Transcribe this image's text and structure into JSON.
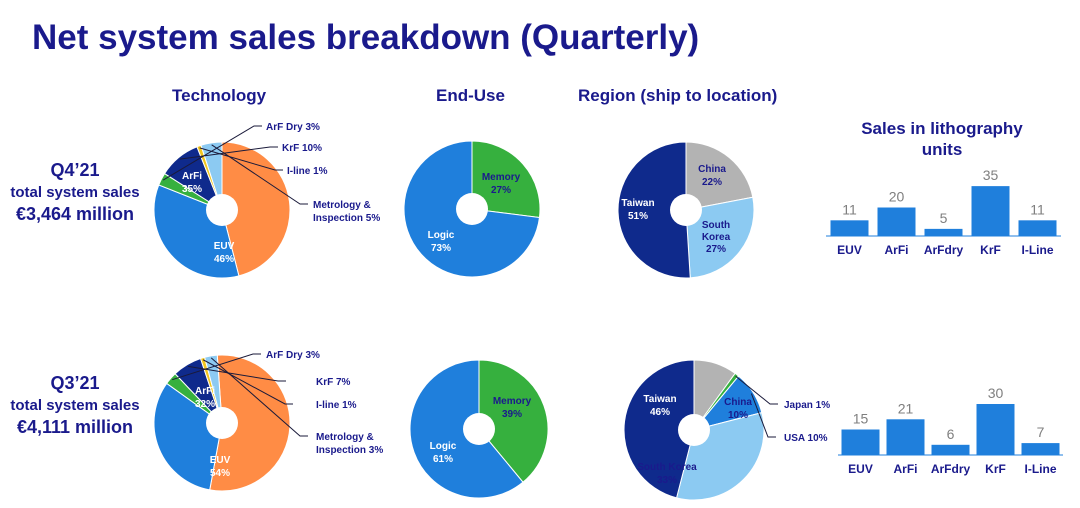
{
  "title": "Net system sales breakdown (Quarterly)",
  "columns": {
    "technology": "Technology",
    "end_use": "End-Use",
    "region": "Region (ship to location)",
    "units": "Sales in lithography units"
  },
  "periods": [
    {
      "quarter": "Q4’21",
      "label": "total system sales",
      "value": "€3,464 million"
    },
    {
      "quarter": "Q3’21",
      "label": "total system sales",
      "value": "€4,111 million"
    }
  ],
  "colors": {
    "title": "#1a1a8c",
    "euv": "#ff8c45",
    "arfi": "#1f7fdc",
    "arf_dry": "#36b03e",
    "krf": "#0f2a8c",
    "iline": "#f2c51e",
    "metrology": "#8ccaf2",
    "logic": "#1f7fdc",
    "memory": "#36b03e",
    "taiwan": "#0f2a8c",
    "china": "#b3b3b3",
    "south_korea": "#8ccaf2",
    "japan": "#36b03e",
    "usa": "#1f7fdc",
    "units_bar": "#1f7fdc"
  },
  "chart_data": [
    {
      "type": "pie",
      "title": "Technology",
      "period": "Q4’21",
      "slices": [
        {
          "label": "EUV",
          "value": 46,
          "value_label": "46%",
          "color": "#ff8c45"
        },
        {
          "label": "ArFi",
          "value": 35,
          "value_label": "35%",
          "color": "#1f7fdc"
        },
        {
          "label": "ArF Dry",
          "value": 3,
          "value_label": "3%",
          "color": "#36b03e"
        },
        {
          "label": "KrF",
          "value": 10,
          "value_label": "10%",
          "color": "#0f2a8c"
        },
        {
          "label": "I-line",
          "value": 1,
          "value_label": "1%",
          "color": "#f2c51e"
        },
        {
          "label": "Metrology & Inspection",
          "value": 5,
          "value_label": "5%",
          "color": "#8ccaf2"
        }
      ]
    },
    {
      "type": "pie",
      "title": "End-Use",
      "period": "Q4’21",
      "slices": [
        {
          "label": "Memory",
          "value": 27,
          "value_label": "27%",
          "color": "#36b03e"
        },
        {
          "label": "Logic",
          "value": 73,
          "value_label": "73%",
          "color": "#1f7fdc"
        }
      ]
    },
    {
      "type": "pie",
      "title": "Region (ship to location)",
      "period": "Q4’21",
      "slices": [
        {
          "label": "China",
          "value": 22,
          "value_label": "22%",
          "color": "#b3b3b3"
        },
        {
          "label": "South Korea",
          "value": 27,
          "value_label": "27%",
          "color": "#8ccaf2"
        },
        {
          "label": "Taiwan",
          "value": 51,
          "value_label": "51%",
          "color": "#0f2a8c"
        }
      ]
    },
    {
      "type": "bar",
      "title": "Sales in lithography units",
      "period": "Q4’21",
      "categories": [
        "EUV",
        "ArFi",
        "ArFdry",
        "KrF",
        "I-Line"
      ],
      "values": [
        11,
        20,
        5,
        35,
        11
      ],
      "value_labels": [
        "11",
        "20",
        "5",
        "35",
        "11"
      ]
    },
    {
      "type": "pie",
      "title": "Technology",
      "period": "Q3’21",
      "slices": [
        {
          "label": "EUV",
          "value": 54,
          "value_label": "54%",
          "color": "#ff8c45"
        },
        {
          "label": "ArFi",
          "value": 32,
          "value_label": "32%",
          "color": "#1f7fdc"
        },
        {
          "label": "ArF Dry",
          "value": 3,
          "value_label": "3%",
          "color": "#36b03e"
        },
        {
          "label": "KrF",
          "value": 7,
          "value_label": "7%",
          "color": "#0f2a8c"
        },
        {
          "label": "I-line",
          "value": 1,
          "value_label": "1%",
          "color": "#f2c51e"
        },
        {
          "label": "Metrology & Inspection",
          "value": 3,
          "value_label": "3%",
          "color": "#8ccaf2"
        }
      ]
    },
    {
      "type": "pie",
      "title": "End-Use",
      "period": "Q3’21",
      "slices": [
        {
          "label": "Memory",
          "value": 39,
          "value_label": "39%",
          "color": "#36b03e"
        },
        {
          "label": "Logic",
          "value": 61,
          "value_label": "61%",
          "color": "#1f7fdc"
        }
      ]
    },
    {
      "type": "pie",
      "title": "Region (ship to location)",
      "period": "Q3’21",
      "slices": [
        {
          "label": "China",
          "value": 10,
          "value_label": "10%",
          "color": "#b3b3b3"
        },
        {
          "label": "Japan",
          "value": 1,
          "value_label": "1%",
          "color": "#36b03e"
        },
        {
          "label": "USA",
          "value": 10,
          "value_label": "10%",
          "color": "#1f7fdc"
        },
        {
          "label": "South Korea",
          "value": 33,
          "value_label": "33%",
          "color": "#8ccaf2"
        },
        {
          "label": "Taiwan",
          "value": 46,
          "value_label": "46%",
          "color": "#0f2a8c"
        }
      ]
    },
    {
      "type": "bar",
      "title": "",
      "period": "Q3’21",
      "categories": [
        "EUV",
        "ArFi",
        "ArFdry",
        "KrF",
        "I-Line"
      ],
      "values": [
        15,
        21,
        6,
        30,
        7
      ],
      "value_labels": [
        "15",
        "21",
        "6",
        "30",
        "7"
      ]
    }
  ]
}
